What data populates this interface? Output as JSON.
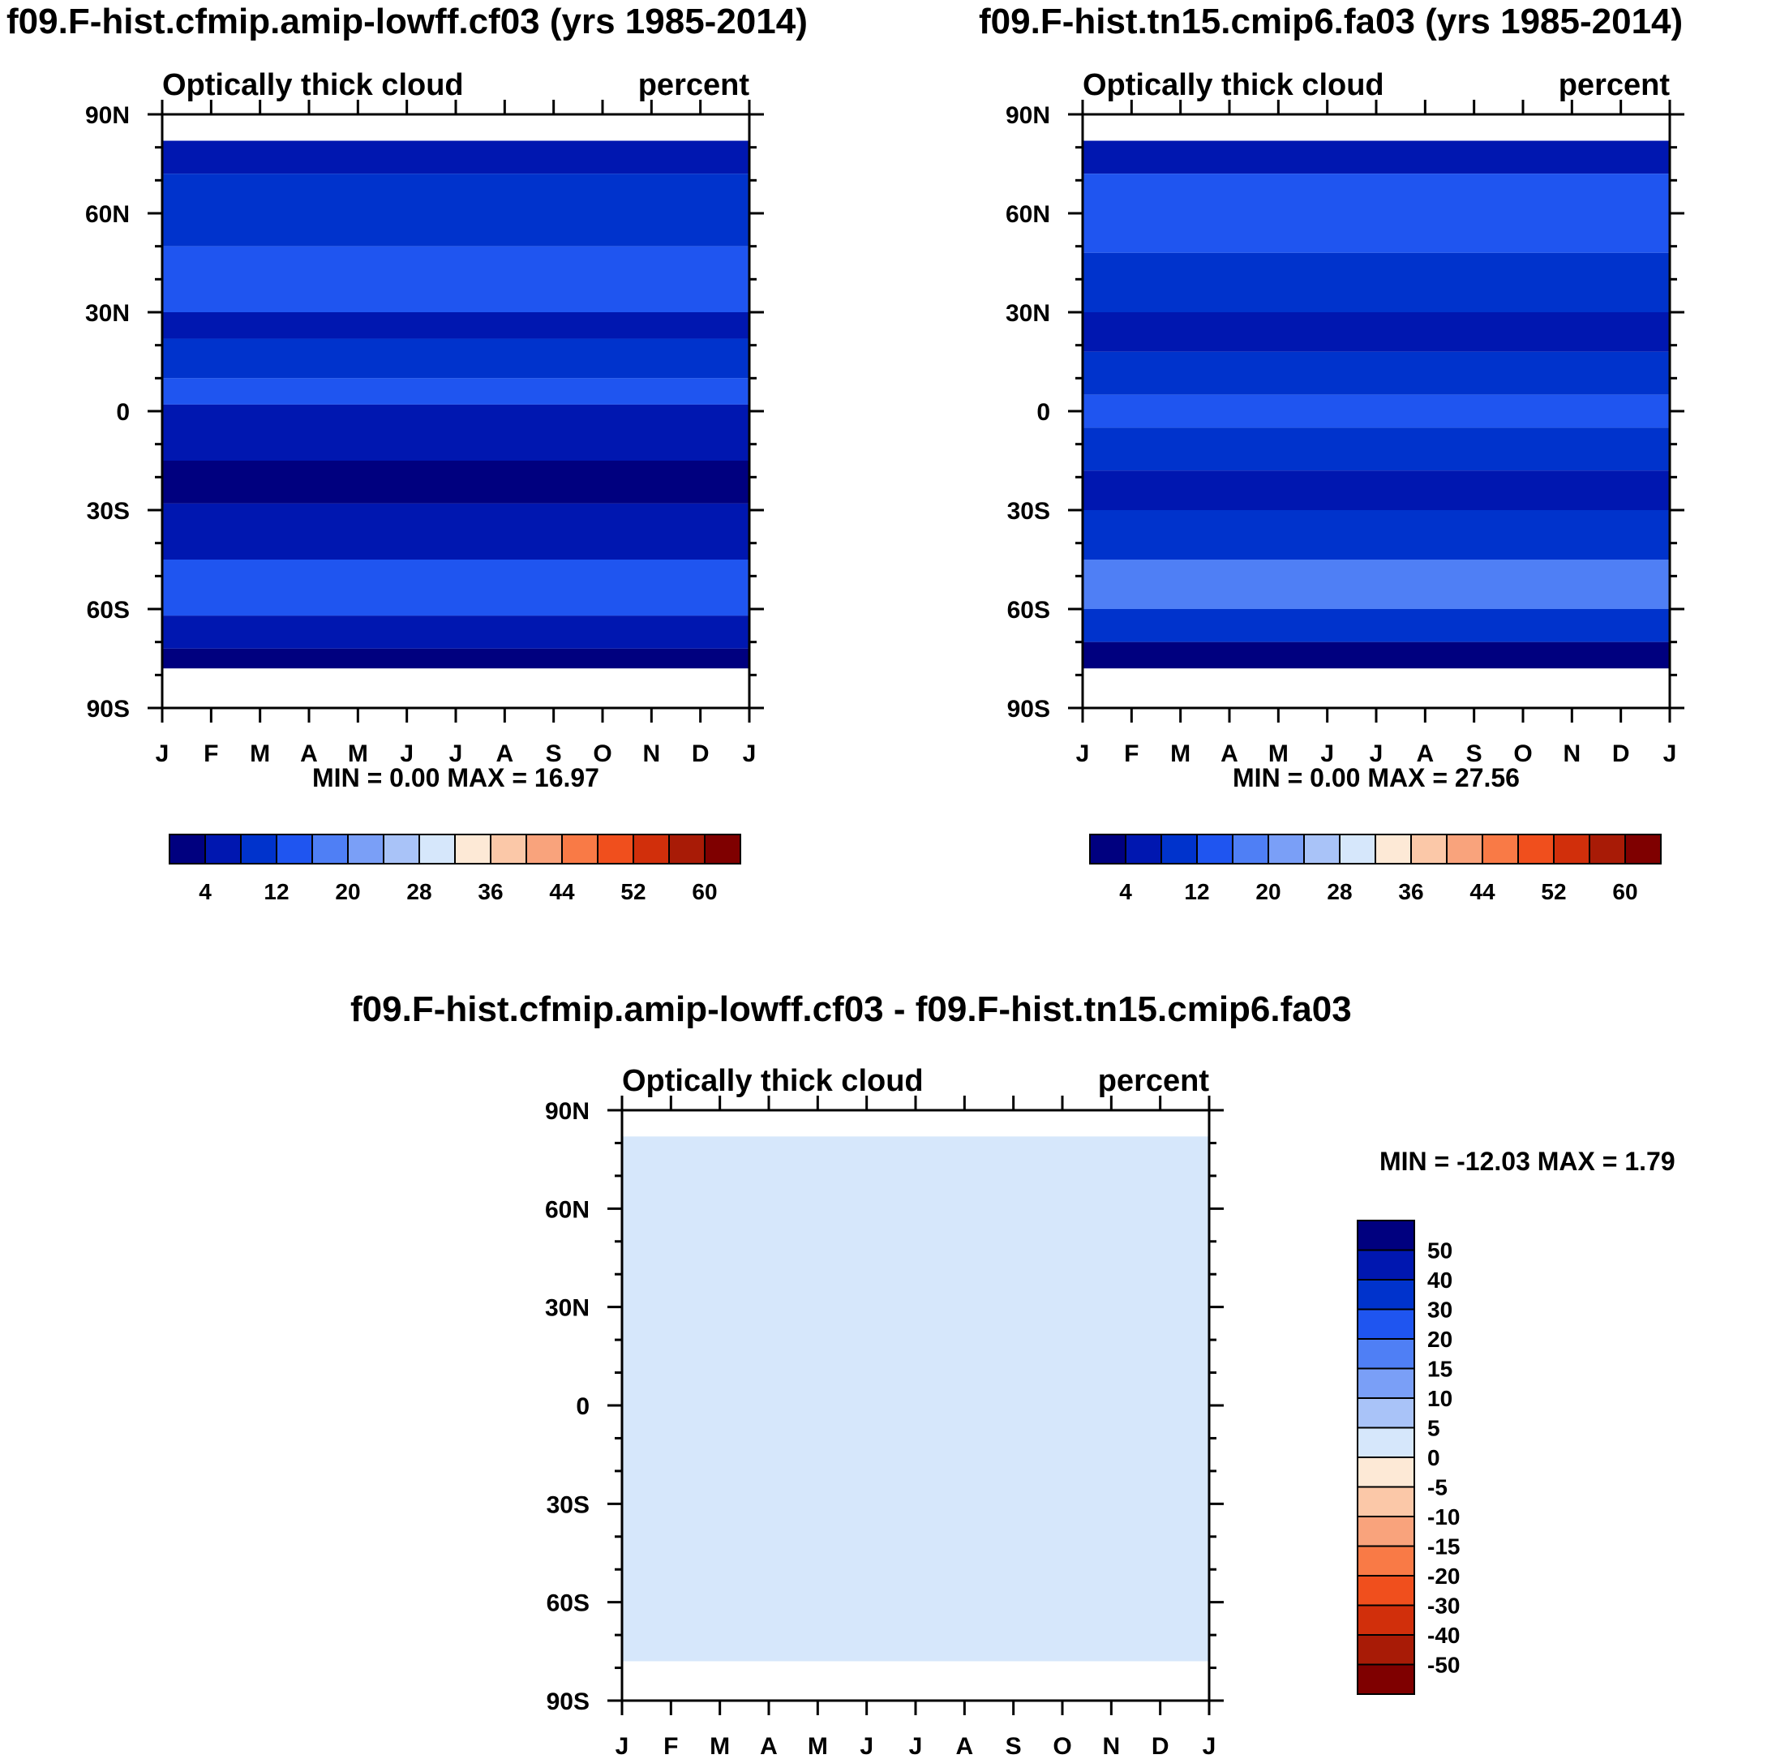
{
  "colorbar_abs": {
    "colors": [
      "#00007f",
      "#0017b0",
      "#0033cc",
      "#1f55f0",
      "#4f7ff5",
      "#7a9ff7",
      "#a9c3f8",
      "#d6e7fb",
      "#fde9d6",
      "#fbc8a8",
      "#f9a37c",
      "#f97a46",
      "#f04f1d",
      "#d12f0b",
      "#a81b06",
      "#7f0000"
    ],
    "labels": [
      "4",
      "12",
      "20",
      "28",
      "36",
      "44",
      "52",
      "60"
    ]
  },
  "colorbar_diff": {
    "colors": [
      "#00007f",
      "#0017b0",
      "#0033cc",
      "#1f55f0",
      "#4f7ff5",
      "#7a9ff7",
      "#a9c3f8",
      "#d6e7fb",
      "#fde9d6",
      "#fbc8a8",
      "#f9a37c",
      "#f97a46",
      "#f04f1d",
      "#d12f0b",
      "#a81b06",
      "#7f0000"
    ],
    "labels": [
      "50",
      "40",
      "30",
      "20",
      "15",
      "10",
      "5",
      "0",
      "-5",
      "-10",
      "-15",
      "-20",
      "-30",
      "-40",
      "-50"
    ]
  },
  "chart_data": [
    {
      "type": "heatmap",
      "title": "f09.F-hist.cfmip.amip-lowff.cf03 (yrs 1985-2014)",
      "left_label": "Optically thick cloud",
      "right_label": "percent",
      "x_labels": [
        "J",
        "F",
        "M",
        "A",
        "M",
        "J",
        "J",
        "A",
        "S",
        "O",
        "N",
        "D",
        "J"
      ],
      "y_labels": [
        "90N",
        "60N",
        "30N",
        "0",
        "30S",
        "60S",
        "90S"
      ],
      "y_range": [
        -90,
        90
      ],
      "stats": "MIN =   0.00 MAX =  16.97",
      "min": 0.0,
      "max": 16.97,
      "zones": [
        {
          "lat": [
            72,
            82
          ],
          "level": 1
        },
        {
          "lat": [
            50,
            72
          ],
          "level": 2
        },
        {
          "lat": [
            30,
            50
          ],
          "level": 3
        },
        {
          "lat": [
            22,
            30
          ],
          "level": 1
        },
        {
          "lat": [
            10,
            22
          ],
          "level": 2
        },
        {
          "lat": [
            2,
            10
          ],
          "level": 3
        },
        {
          "lat": [
            -15,
            2
          ],
          "level": 1
        },
        {
          "lat": [
            -28,
            -15
          ],
          "level": 0
        },
        {
          "lat": [
            -45,
            -28
          ],
          "level": 1
        },
        {
          "lat": [
            -62,
            -45
          ],
          "level": 3
        },
        {
          "lat": [
            -72,
            -62
          ],
          "level": 1
        },
        {
          "lat": [
            -78,
            -72
          ],
          "level": 0
        }
      ]
    },
    {
      "type": "heatmap",
      "title": "f09.F-hist.tn15.cmip6.fa03 (yrs 1985-2014)",
      "left_label": "Optically thick cloud",
      "right_label": "percent",
      "x_labels": [
        "J",
        "F",
        "M",
        "A",
        "M",
        "J",
        "J",
        "A",
        "S",
        "O",
        "N",
        "D",
        "J"
      ],
      "y_labels": [
        "90N",
        "60N",
        "30N",
        "0",
        "30S",
        "60S",
        "90S"
      ],
      "y_range": [
        -90,
        90
      ],
      "stats": "MIN =   0.00 MAX =  27.56",
      "min": 0.0,
      "max": 27.56,
      "zones": [
        {
          "lat": [
            72,
            82
          ],
          "level": 1
        },
        {
          "lat": [
            48,
            72
          ],
          "level": 3
        },
        {
          "lat": [
            30,
            48
          ],
          "level": 2
        },
        {
          "lat": [
            18,
            30
          ],
          "level": 1
        },
        {
          "lat": [
            5,
            18
          ],
          "level": 2
        },
        {
          "lat": [
            -5,
            5
          ],
          "level": 3
        },
        {
          "lat": [
            -18,
            -5
          ],
          "level": 2
        },
        {
          "lat": [
            -30,
            -18
          ],
          "level": 1
        },
        {
          "lat": [
            -45,
            -30
          ],
          "level": 2
        },
        {
          "lat": [
            -60,
            -45
          ],
          "level": 4
        },
        {
          "lat": [
            -70,
            -60
          ],
          "level": 2
        },
        {
          "lat": [
            -78,
            -70
          ],
          "level": 0
        }
      ]
    },
    {
      "type": "heatmap",
      "title": "f09.F-hist.cfmip.amip-lowff.cf03 - f09.F-hist.tn15.cmip6.fa03",
      "left_label": "Optically thick cloud",
      "right_label": "percent",
      "x_labels": [
        "J",
        "F",
        "M",
        "A",
        "M",
        "J",
        "J",
        "A",
        "S",
        "O",
        "N",
        "D",
        "J"
      ],
      "y_labels": [
        "90N",
        "60N",
        "30N",
        "0",
        "30S",
        "60S",
        "90S"
      ],
      "y_range": [
        -90,
        90
      ],
      "stats": "MIN = -12.03 MAX =   1.79",
      "min": -12.03,
      "max": 1.79,
      "zones": [
        {
          "lat": [
            -78,
            82
          ],
          "level": 7
        }
      ]
    }
  ]
}
